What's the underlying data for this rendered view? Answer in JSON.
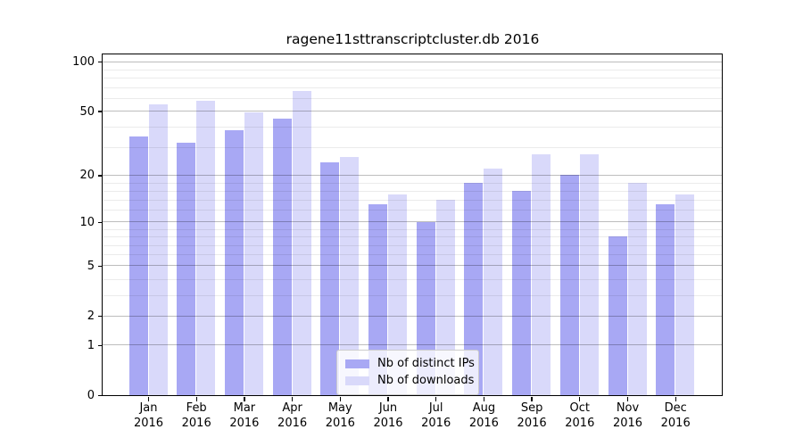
{
  "title": "ragene11sttranscriptcluster.db 2016",
  "chart_data": {
    "type": "bar",
    "title": "ragene11sttranscriptcluster.db 2016",
    "categories": [
      "Jan",
      "Feb",
      "Mar",
      "Apr",
      "May",
      "Jun",
      "Jul",
      "Aug",
      "Sep",
      "Oct",
      "Nov",
      "Dec"
    ],
    "year": "2016",
    "series": [
      {
        "name": "Nb of distinct IPs",
        "color": "#a8a8f4",
        "values": [
          35,
          32,
          38,
          45,
          24,
          13,
          10,
          18,
          16,
          20,
          8,
          13
        ]
      },
      {
        "name": "Nb of downloads",
        "color": "#d9d9fa",
        "values": [
          55,
          58,
          49,
          66,
          26,
          15,
          14,
          22,
          27,
          27,
          18,
          15
        ]
      }
    ],
    "yscale": "log10(value+1)",
    "ylim": [
      0,
      111
    ],
    "yticks": [
      0,
      1,
      2,
      5,
      10,
      20,
      50,
      100
    ],
    "minor_gridlines": [
      3,
      4,
      6,
      7,
      8,
      9,
      12,
      14,
      16,
      18,
      30,
      40,
      60,
      70,
      80,
      90
    ],
    "grid": true,
    "legend_position": "lower center, inside plot"
  },
  "legend": {
    "items": [
      "Nb of distinct IPs",
      "Nb of downloads"
    ]
  }
}
